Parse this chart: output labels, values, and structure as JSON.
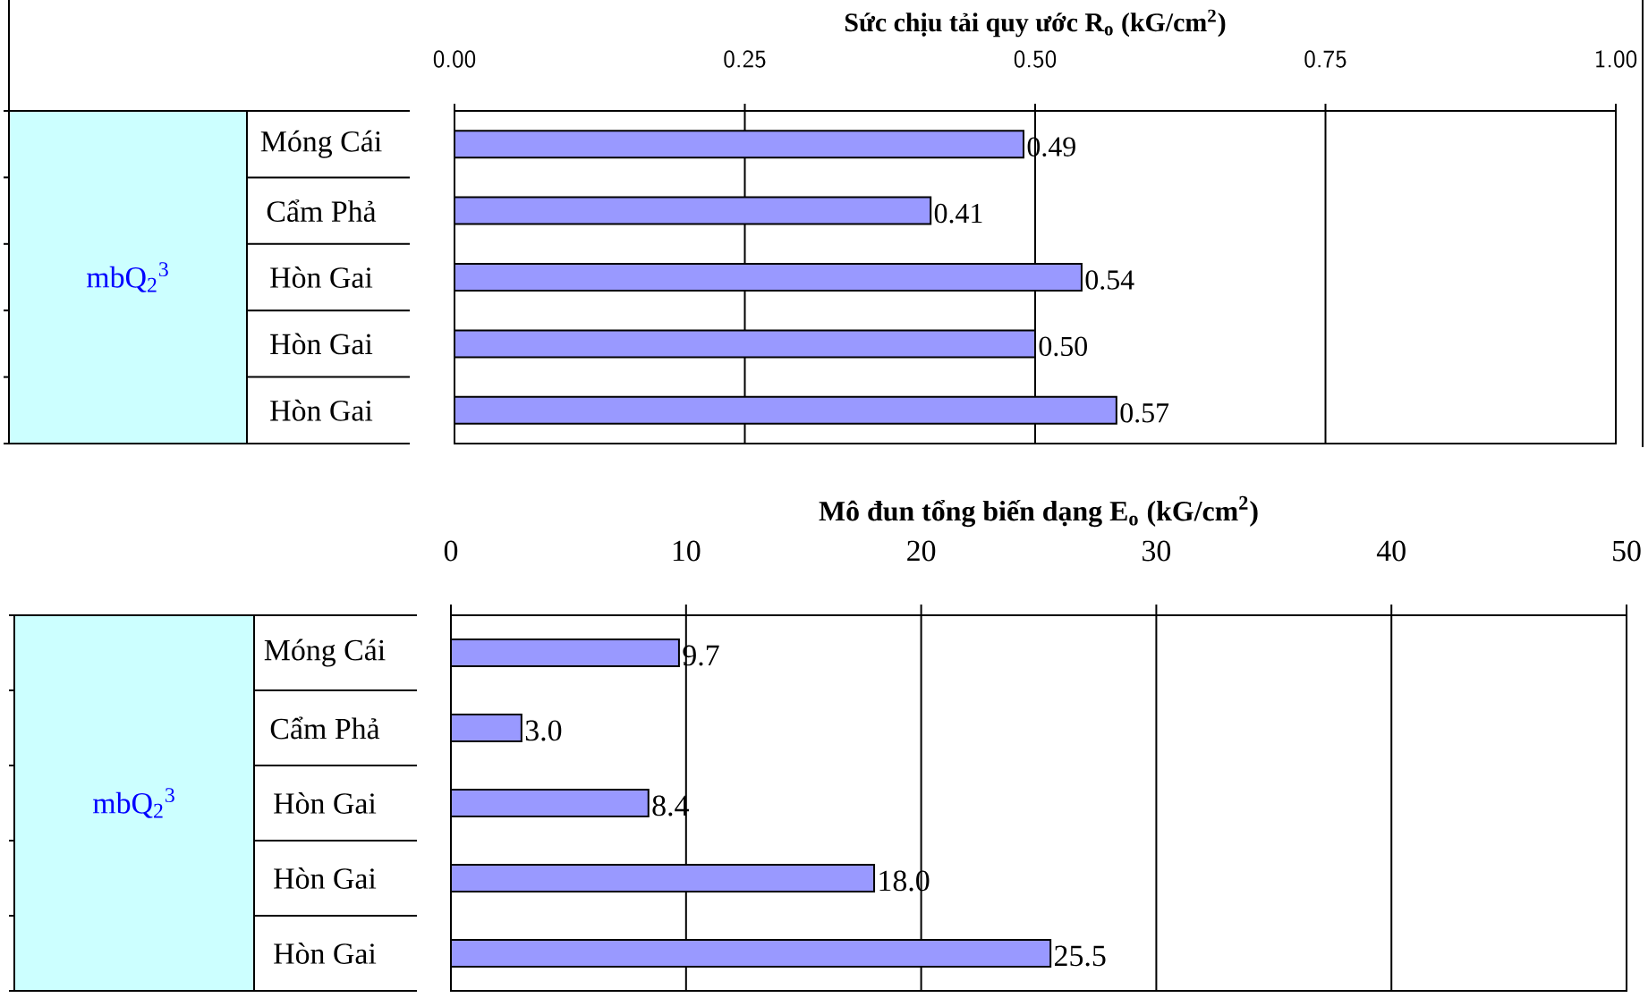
{
  "chart_data": [
    {
      "type": "bar",
      "orientation": "horizontal",
      "xlabel": "Sức chịu tải quy ước R$_{o}$ (kG/cm$^{2}$)",
      "ylabel": "mbQ$_{2}$$^{3}$",
      "categories": [
        "Móng Cái",
        "Cẩm Phả",
        "Hòn Gai",
        "Hòn Gai",
        "Hòn Gai"
      ],
      "values": [
        0.49,
        0.41,
        0.54,
        0.5,
        0.57
      ],
      "value_labels": [
        "0.49",
        "0.41",
        "0.54",
        "0.50",
        "0.57"
      ],
      "color": "#9999ff",
      "xlim": [
        0,
        1
      ],
      "xticks": [
        {
          "value": 0,
          "label": "0.00"
        },
        {
          "value": 0.25,
          "label": "0.25"
        },
        {
          "value": 0.5,
          "label": "0.50"
        },
        {
          "value": 0.75,
          "label": "0.75"
        },
        {
          "value": 1,
          "label": "1.00"
        }
      ],
      "grid": "x"
    },
    {
      "type": "bar",
      "orientation": "horizontal",
      "xlabel": "Mô đun tổng biến dạng E$_{o}$ (kG/cm$^{2}$)",
      "ylabel": "mbQ$_{2}$$^{3}$",
      "categories": [
        "Móng Cái",
        "Cẩm Phả",
        "Hòn Gai",
        "Hòn Gai",
        "Hòn Gai"
      ],
      "values": [
        9.7,
        3.0,
        8.4,
        18.0,
        25.5
      ],
      "value_labels": [
        "9.7",
        "3.0",
        "8.4",
        "18.0",
        "25.5"
      ],
      "color": "#9999ff",
      "xlim": [
        0,
        50
      ],
      "xticks": [
        0,
        10,
        20,
        30,
        40,
        50
      ],
      "grid": "x"
    }
  ]
}
